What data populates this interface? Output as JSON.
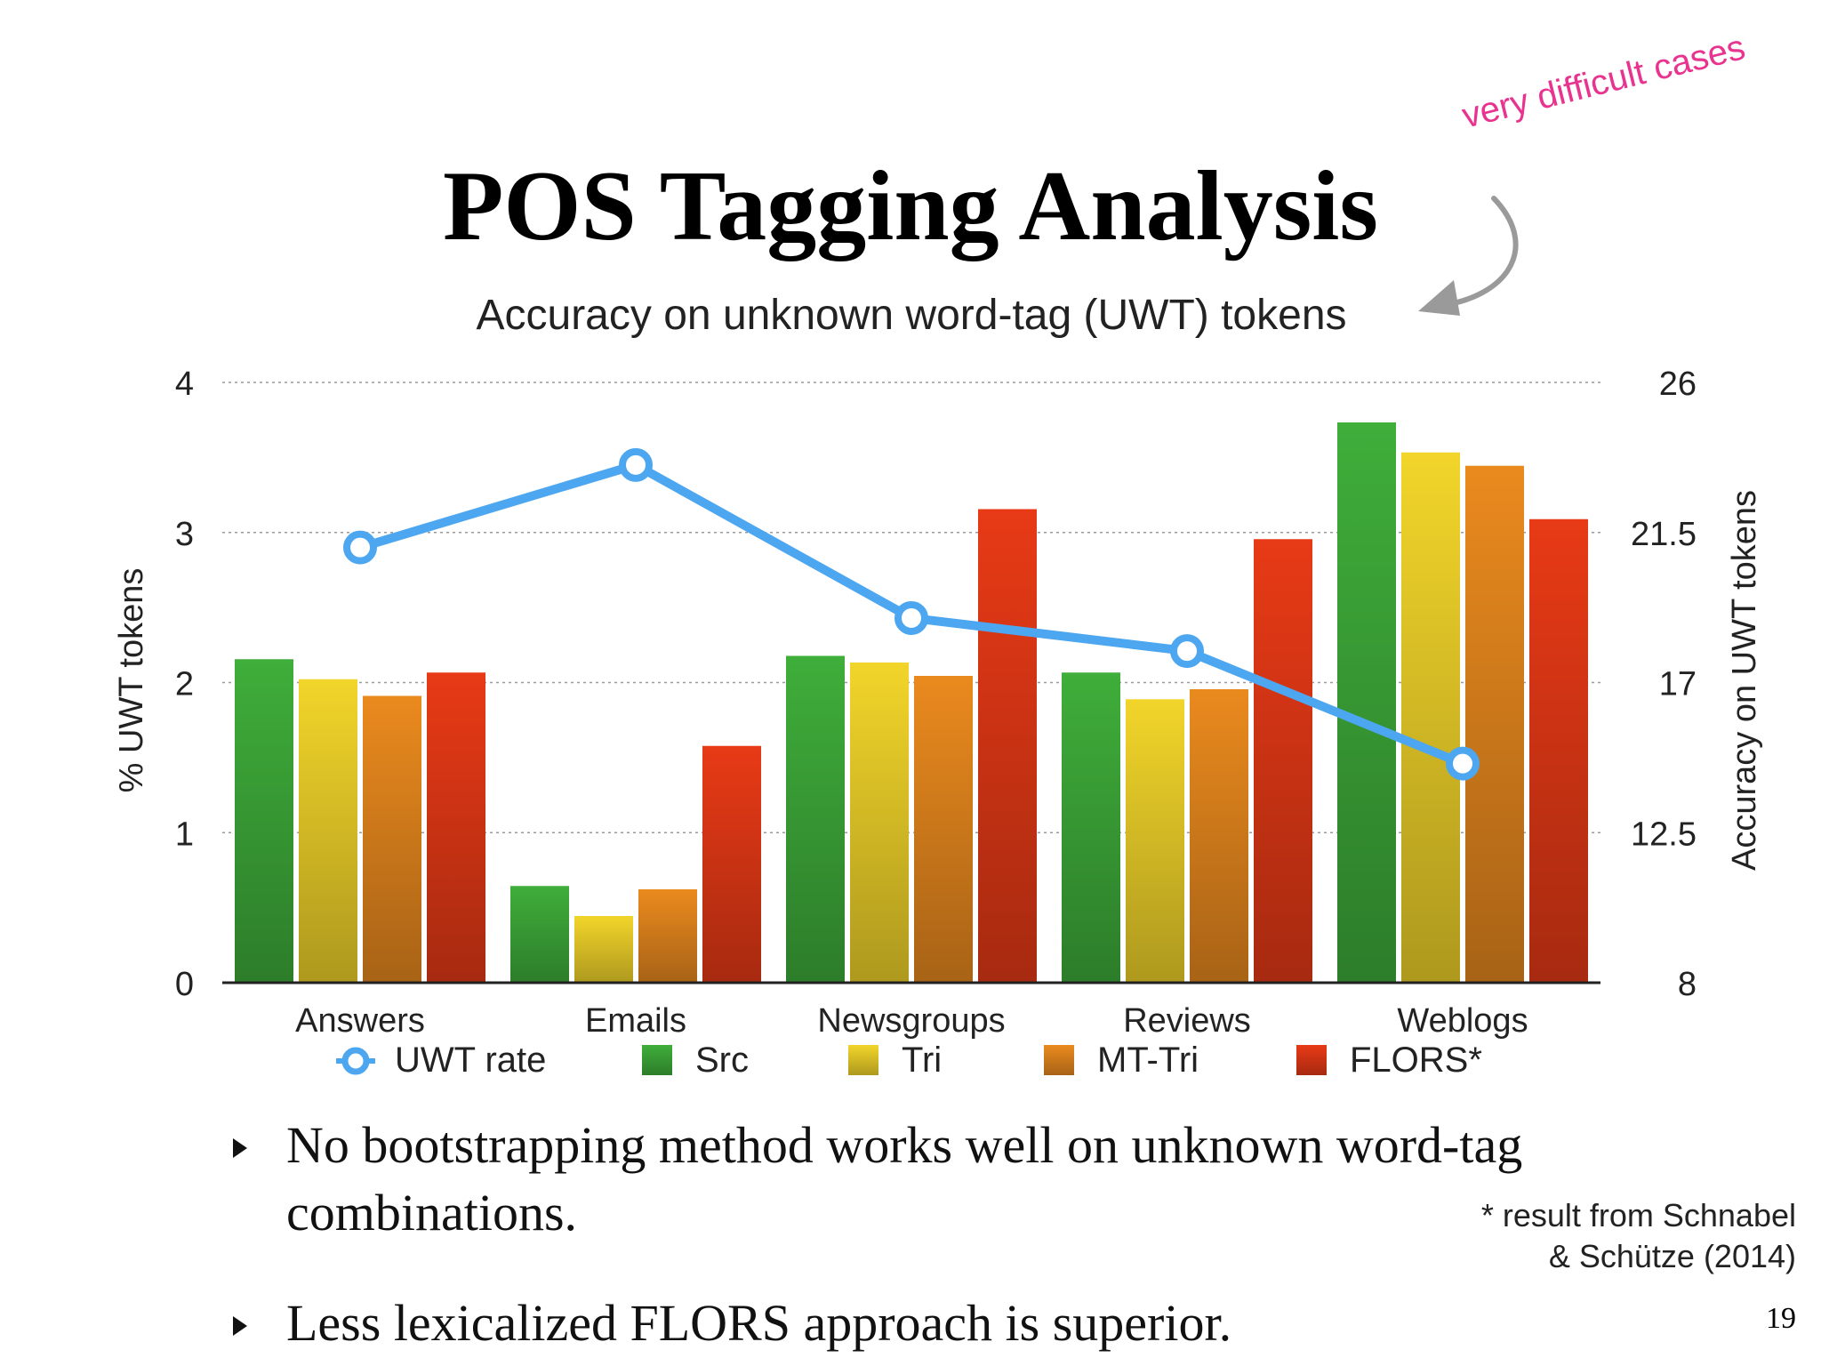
{
  "slide": {
    "title": "POS Tagging Analysis",
    "annotation": "very difficult cases",
    "bullets": [
      "No bootstrapping method works well on unknown word-tag combinations.",
      "Less lexicalized FLORS approach is superior."
    ],
    "footnote": [
      "* result from Schnabel",
      "& Schütze (2014)"
    ],
    "page_number": "19"
  },
  "chart_data": {
    "type": "bar",
    "title": "",
    "subtitle": "Accuracy on unknown word-tag (UWT) tokens",
    "categories": [
      "Answers",
      "Emails",
      "Newsgroups",
      "Reviews",
      "Weblogs"
    ],
    "ylabel_left": "% UWT tokens",
    "ylabel_right": "Accuracy on UWT tokens",
    "ylim_left": [
      0,
      4
    ],
    "yticks_left": [
      "0",
      "1",
      "2",
      "3",
      "4"
    ],
    "ylim_right": [
      8,
      26
    ],
    "yticks_right": [
      "8",
      "12.5",
      "17",
      "21.5",
      "26"
    ],
    "grid": true,
    "legend_position": "bottom",
    "series": [
      {
        "name": "Src",
        "axis": "right",
        "color": "#3fae3a",
        "values": [
          17.7,
          10.9,
          17.8,
          17.3,
          24.8
        ]
      },
      {
        "name": "Tri",
        "axis": "right",
        "color": "#f2d52a",
        "values": [
          17.1,
          10.0,
          17.6,
          16.5,
          23.9
        ]
      },
      {
        "name": "MT-Tri",
        "axis": "right",
        "color": "#ea8a1e",
        "values": [
          16.6,
          10.8,
          17.2,
          16.8,
          23.5
        ]
      },
      {
        "name": "FLORS*",
        "axis": "right",
        "color": "#e83a16",
        "values": [
          17.3,
          15.1,
          22.2,
          21.3,
          21.9
        ]
      }
    ],
    "line_series": {
      "name": "UWT rate",
      "axis": "left",
      "color": "#4da6f0",
      "values": [
        2.9,
        3.45,
        2.43,
        2.21,
        1.46
      ]
    }
  }
}
